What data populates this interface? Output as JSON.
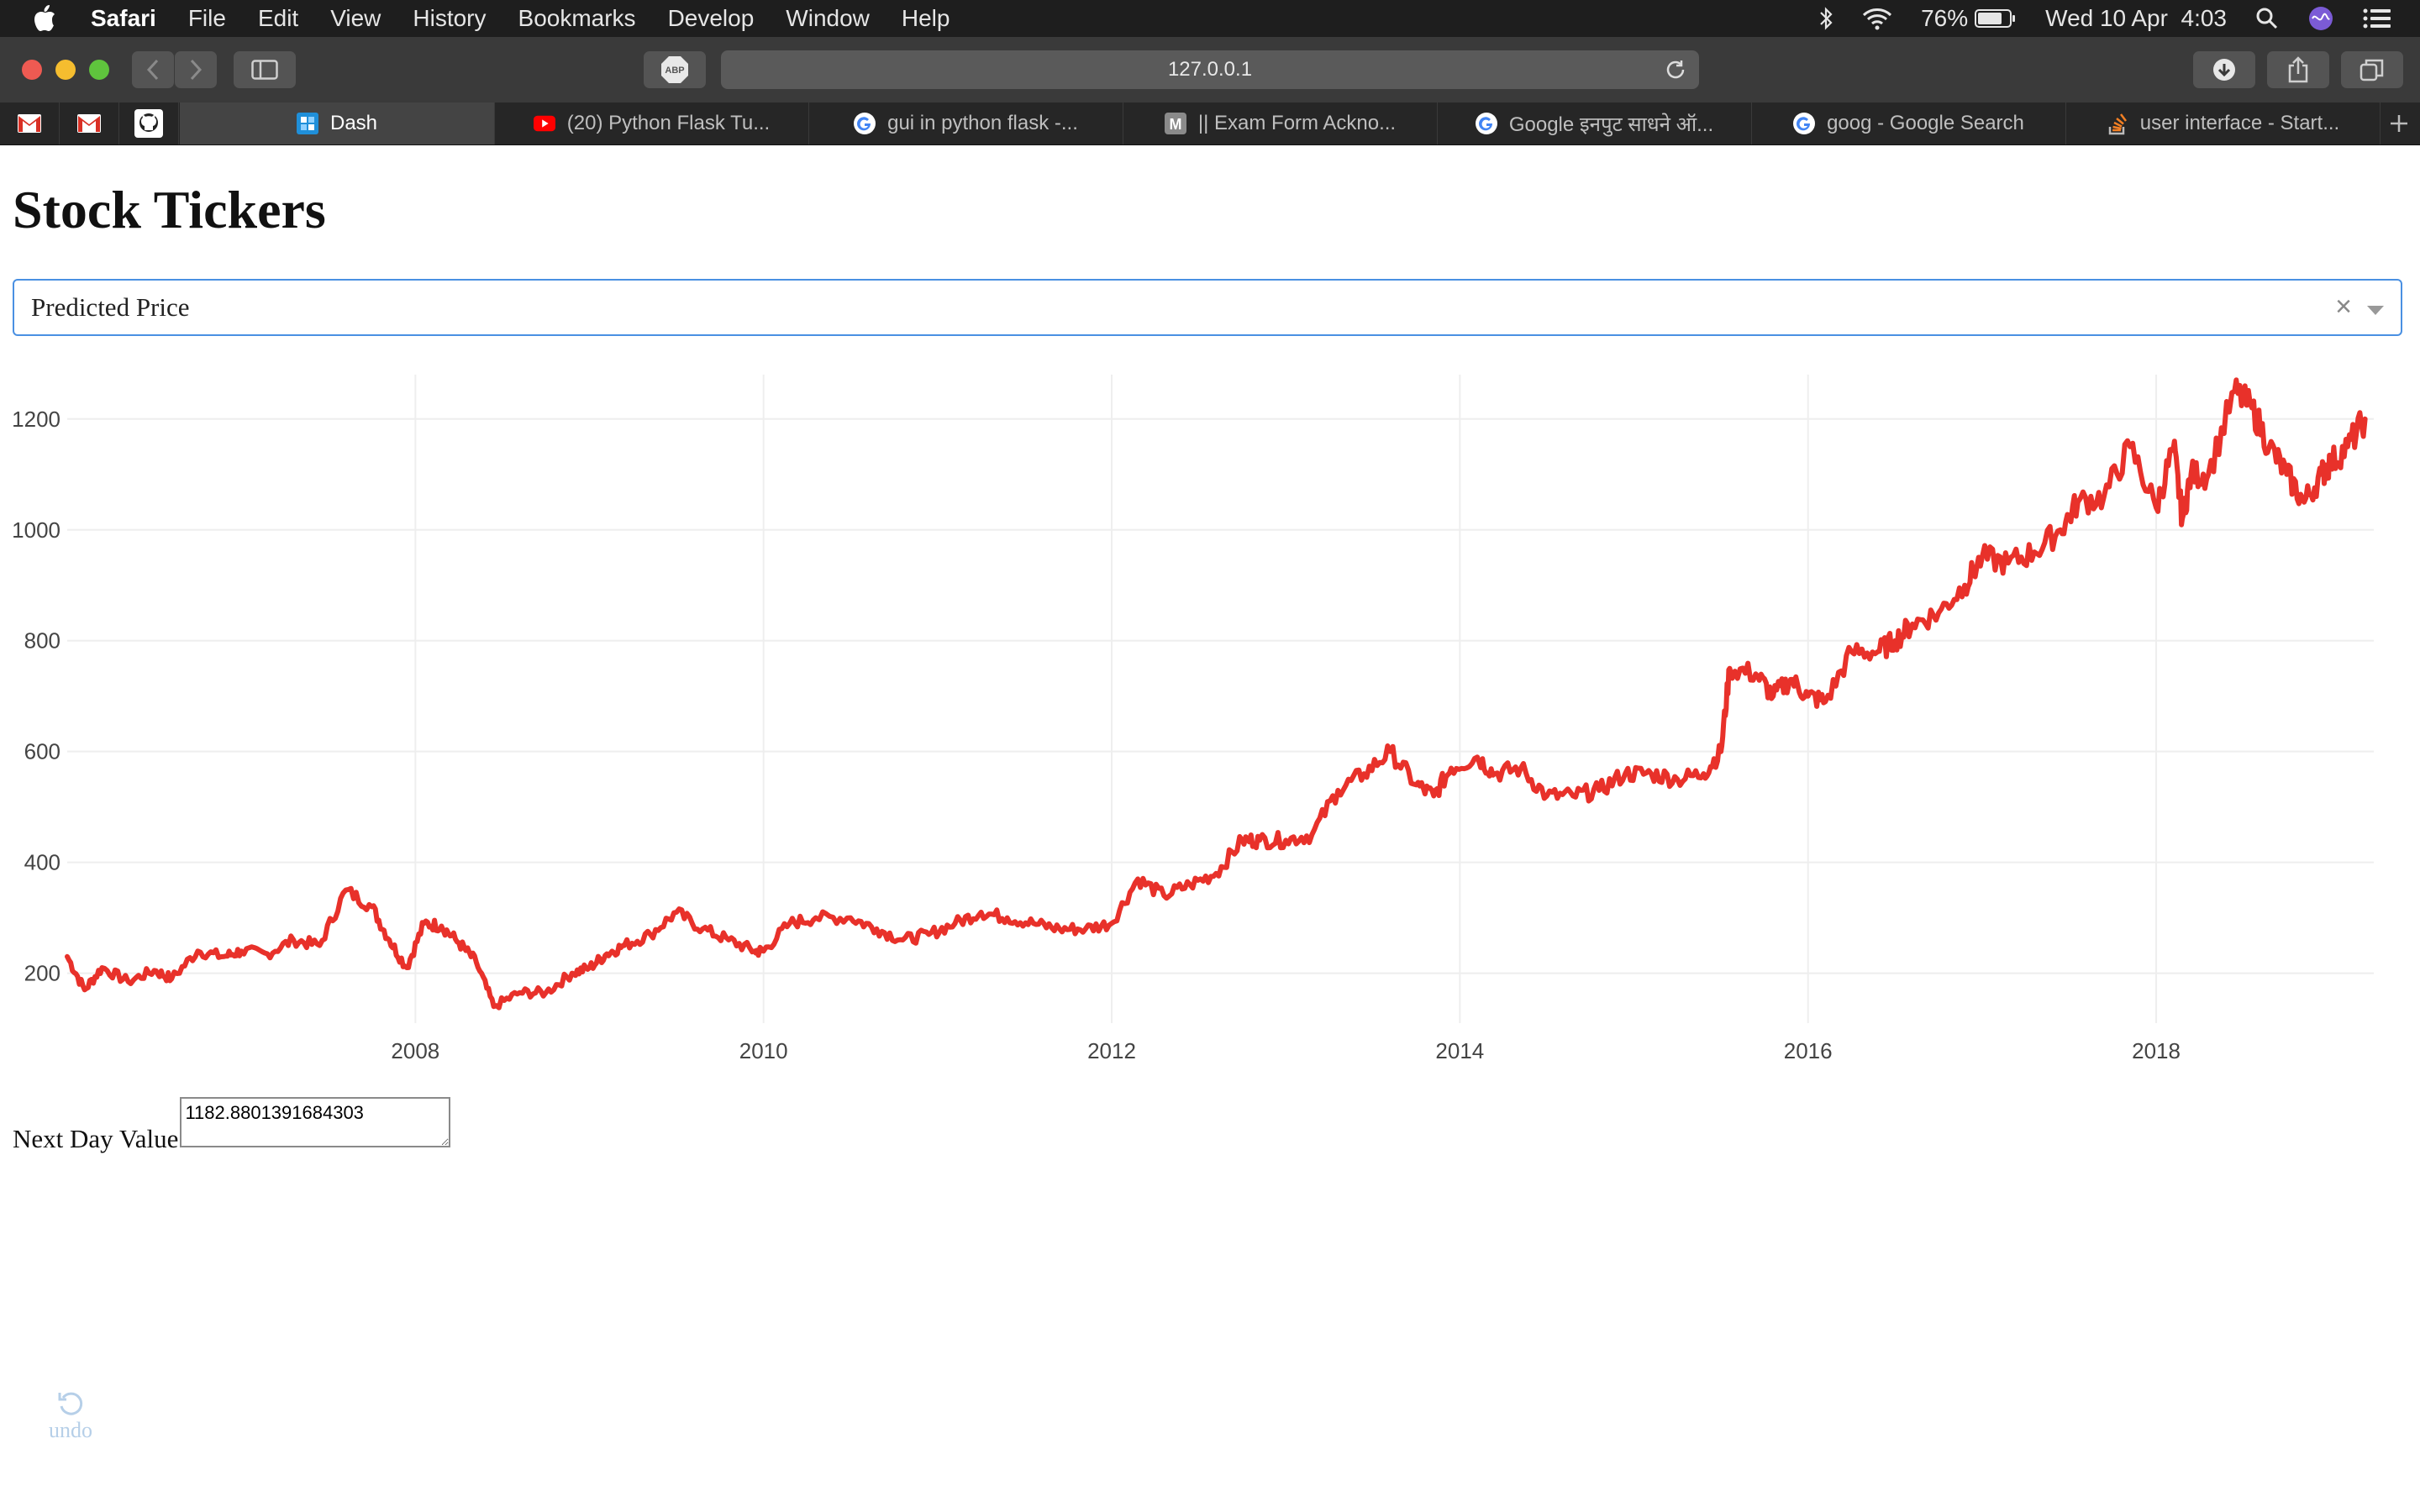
{
  "menubar": {
    "app": "Safari",
    "items": [
      "File",
      "Edit",
      "View",
      "History",
      "Bookmarks",
      "Develop",
      "Window",
      "Help"
    ],
    "battery": "76%",
    "datetime": "Wed 10 Apr  4:03"
  },
  "toolbar": {
    "url": "127.0.0.1",
    "abp_label": "ABP"
  },
  "tabs": [
    {
      "label": "Dash",
      "favicon": "dash-icon",
      "active": true
    },
    {
      "label": "(20) Python Flask Tu...",
      "favicon": "youtube-icon",
      "active": false
    },
    {
      "label": "gui in python flask -...",
      "favicon": "google-icon",
      "active": false
    },
    {
      "label": "|| Exam Form Ackno...",
      "favicon": "m-icon",
      "active": false
    },
    {
      "label": "Google इनपुट साधने ऑ...",
      "favicon": "google-icon",
      "active": false
    },
    {
      "label": "goog - Google Search",
      "favicon": "google-icon",
      "active": false
    },
    {
      "label": "user interface - Start...",
      "favicon": "stackoverflow-icon",
      "active": false
    }
  ],
  "page": {
    "title": "Stock Tickers",
    "dropdown": {
      "selected": "Predicted Price",
      "clear_glyph": "×"
    },
    "next_day_label": "Next Day Value",
    "next_day_value": "1182.8801391684303",
    "undo_label": "undo"
  },
  "chart_data": {
    "type": "line",
    "title": "",
    "xlabel": "",
    "ylabel": "",
    "color": "#e8312a",
    "xlim": [
      2006.0,
      2019.25
    ],
    "ylim": [
      110,
      1280
    ],
    "x_ticks": [
      2008,
      2010,
      2012,
      2014,
      2016,
      2018
    ],
    "y_ticks": [
      200,
      400,
      600,
      800,
      1000,
      1200
    ],
    "grid": true,
    "x": [
      2006.0,
      2006.1,
      2006.2,
      2006.35,
      2006.5,
      2006.6,
      2006.75,
      2006.9,
      2007.0,
      2007.15,
      2007.3,
      2007.45,
      2007.6,
      2007.75,
      2007.85,
      2007.95,
      2008.05,
      2008.15,
      2008.25,
      2008.35,
      2008.45,
      2008.6,
      2008.75,
      2008.9,
      2009.0,
      2009.1,
      2009.2,
      2009.35,
      2009.5,
      2009.65,
      2009.8,
      2009.95,
      2010.0,
      2010.15,
      2010.3,
      2010.5,
      2010.65,
      2010.8,
      2010.95,
      2011.1,
      2011.25,
      2011.4,
      2011.55,
      2011.7,
      2011.85,
      2012.0,
      2012.15,
      2012.3,
      2012.45,
      2012.6,
      2012.75,
      2012.85,
      2013.0,
      2013.15,
      2013.3,
      2013.45,
      2013.6,
      2013.75,
      2013.85,
      2013.95,
      2014.1,
      2014.2,
      2014.35,
      2014.5,
      2014.65,
      2014.8,
      2014.95,
      2015.1,
      2015.25,
      2015.4,
      2015.5,
      2015.55,
      2015.7,
      2015.8,
      2015.9,
      2016.0,
      2016.1,
      2016.25,
      2016.4,
      2016.5,
      2016.6,
      2016.75,
      2016.9,
      2017.0,
      2017.15,
      2017.3,
      2017.45,
      2017.55,
      2017.7,
      2017.85,
      2018.0,
      2018.1,
      2018.15,
      2018.2,
      2018.3,
      2018.45,
      2018.55,
      2018.65,
      2018.75,
      2018.85,
      2018.95,
      2019.0,
      2019.1,
      2019.2
    ],
    "y": [
      230,
      170,
      210,
      185,
      205,
      190,
      240,
      230,
      240,
      235,
      260,
      250,
      350,
      320,
      260,
      210,
      290,
      285,
      255,
      220,
      140,
      165,
      165,
      200,
      210,
      235,
      250,
      270,
      310,
      280,
      260,
      240,
      240,
      290,
      300,
      300,
      280,
      260,
      270,
      290,
      310,
      300,
      290,
      280,
      280,
      290,
      370,
      340,
      360,
      380,
      440,
      440,
      440,
      450,
      530,
      560,
      600,
      540,
      520,
      570,
      590,
      560,
      570,
      520,
      520,
      530,
      560,
      560,
      550,
      560,
      600,
      750,
      740,
      700,
      730,
      700,
      690,
      780,
      780,
      800,
      830,
      850,
      900,
      950,
      940,
      960,
      1000,
      1050,
      1060,
      1150,
      1040,
      1150,
      1020,
      1100,
      1100,
      1250,
      1220,
      1150,
      1100,
      1050,
      1100,
      1120,
      1150,
      1200
    ]
  }
}
